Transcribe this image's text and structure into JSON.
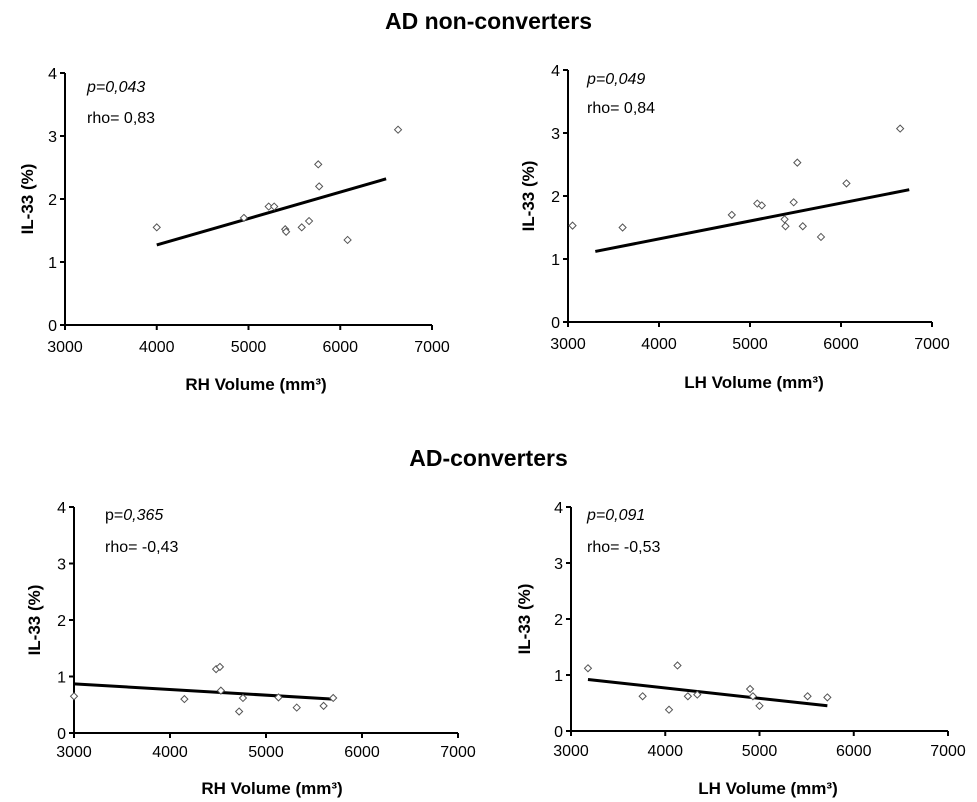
{
  "titles": {
    "top": "AD non-converters",
    "bottom": "AD-converters"
  },
  "chart_data": [
    {
      "type": "scatter",
      "group": "AD non-converters",
      "xlabel": "RH Volume (mm³)",
      "ylabel": "IL-33 (%)",
      "xlim": [
        3000,
        7000
      ],
      "ylim": [
        0,
        4
      ],
      "xticks": [
        "3000",
        "4000",
        "5000",
        "6000",
        "7000"
      ],
      "yticks": [
        "0",
        "1",
        "2",
        "3",
        "4"
      ],
      "p_prefix": "",
      "p_value": "p=0,043",
      "rho": "rho=  0,83",
      "points": [
        [
          4000,
          1.55
        ],
        [
          4950,
          1.7
        ],
        [
          5220,
          1.88
        ],
        [
          5280,
          1.88
        ],
        [
          5400,
          1.52
        ],
        [
          5410,
          1.48
        ],
        [
          5580,
          1.55
        ],
        [
          5660,
          1.65
        ],
        [
          5760,
          2.55
        ],
        [
          5770,
          2.2
        ],
        [
          6080,
          1.35
        ],
        [
          6630,
          3.1
        ]
      ],
      "fit": [
        [
          4000,
          1.27
        ],
        [
          6500,
          2.32
        ]
      ],
      "grid": false
    },
    {
      "type": "scatter",
      "group": "AD non-converters",
      "xlabel": "LH Volume (mm³)",
      "ylabel": "IL-33 (%)",
      "xlim": [
        3000,
        7000
      ],
      "ylim": [
        0,
        4
      ],
      "xticks": [
        "3000",
        "4000",
        "5000",
        "6000",
        "7000"
      ],
      "yticks": [
        "0",
        "1",
        "2",
        "3",
        "4"
      ],
      "p_prefix": "",
      "p_value": "p=0,049",
      "rho": "rho=  0,84",
      "points": [
        [
          3050,
          1.53
        ],
        [
          3600,
          1.5
        ],
        [
          4800,
          1.7
        ],
        [
          5080,
          1.88
        ],
        [
          5130,
          1.85
        ],
        [
          5380,
          1.63
        ],
        [
          5390,
          1.52
        ],
        [
          5480,
          1.9
        ],
        [
          5520,
          2.53
        ],
        [
          5580,
          1.52
        ],
        [
          5780,
          1.35
        ],
        [
          6060,
          2.2
        ],
        [
          6650,
          3.07
        ]
      ],
      "fit": [
        [
          3300,
          1.12
        ],
        [
          6750,
          2.1
        ]
      ],
      "grid": false
    },
    {
      "type": "scatter",
      "group": "AD-converters",
      "xlabel": "RH Volume (mm³)",
      "ylabel": "IL-33 (%)",
      "xlim": [
        3000,
        7000
      ],
      "ylim": [
        0,
        4
      ],
      "xticks": [
        "3000",
        "4000",
        "5000",
        "6000",
        "7000"
      ],
      "yticks": [
        "0",
        "1",
        "2",
        "3",
        "4"
      ],
      "p_prefix": "p=",
      "p_value": "0,365",
      "rho": "rho= -0,43",
      "points": [
        [
          3000,
          0.65
        ],
        [
          4150,
          0.6
        ],
        [
          4480,
          1.13
        ],
        [
          4520,
          1.17
        ],
        [
          4530,
          0.75
        ],
        [
          4720,
          0.38
        ],
        [
          4760,
          0.62
        ],
        [
          5130,
          0.63
        ],
        [
          5320,
          0.45
        ],
        [
          5600,
          0.48
        ],
        [
          5700,
          0.62
        ]
      ],
      "fit": [
        [
          3000,
          0.87
        ],
        [
          5700,
          0.6
        ]
      ],
      "grid": false
    },
    {
      "type": "scatter",
      "group": "AD-converters",
      "xlabel": "LH Volume (mm³)",
      "ylabel": "IL-33 (%)",
      "xlim": [
        3000,
        7000
      ],
      "ylim": [
        0,
        4
      ],
      "xticks": [
        "3000",
        "4000",
        "5000",
        "6000",
        "7000"
      ],
      "yticks": [
        "0",
        "1",
        "2",
        "3",
        "4"
      ],
      "p_prefix": "",
      "p_value": "p=0,091",
      "rho": "rho= -0,53",
      "points": [
        [
          3180,
          1.12
        ],
        [
          3760,
          0.62
        ],
        [
          4040,
          0.38
        ],
        [
          4130,
          1.17
        ],
        [
          4240,
          0.62
        ],
        [
          4340,
          0.65
        ],
        [
          4900,
          0.75
        ],
        [
          4930,
          0.62
        ],
        [
          5000,
          0.45
        ],
        [
          5510,
          0.62
        ],
        [
          5720,
          0.6
        ]
      ],
      "fit": [
        [
          3180,
          0.92
        ],
        [
          5720,
          0.45
        ]
      ],
      "grid": false
    }
  ]
}
